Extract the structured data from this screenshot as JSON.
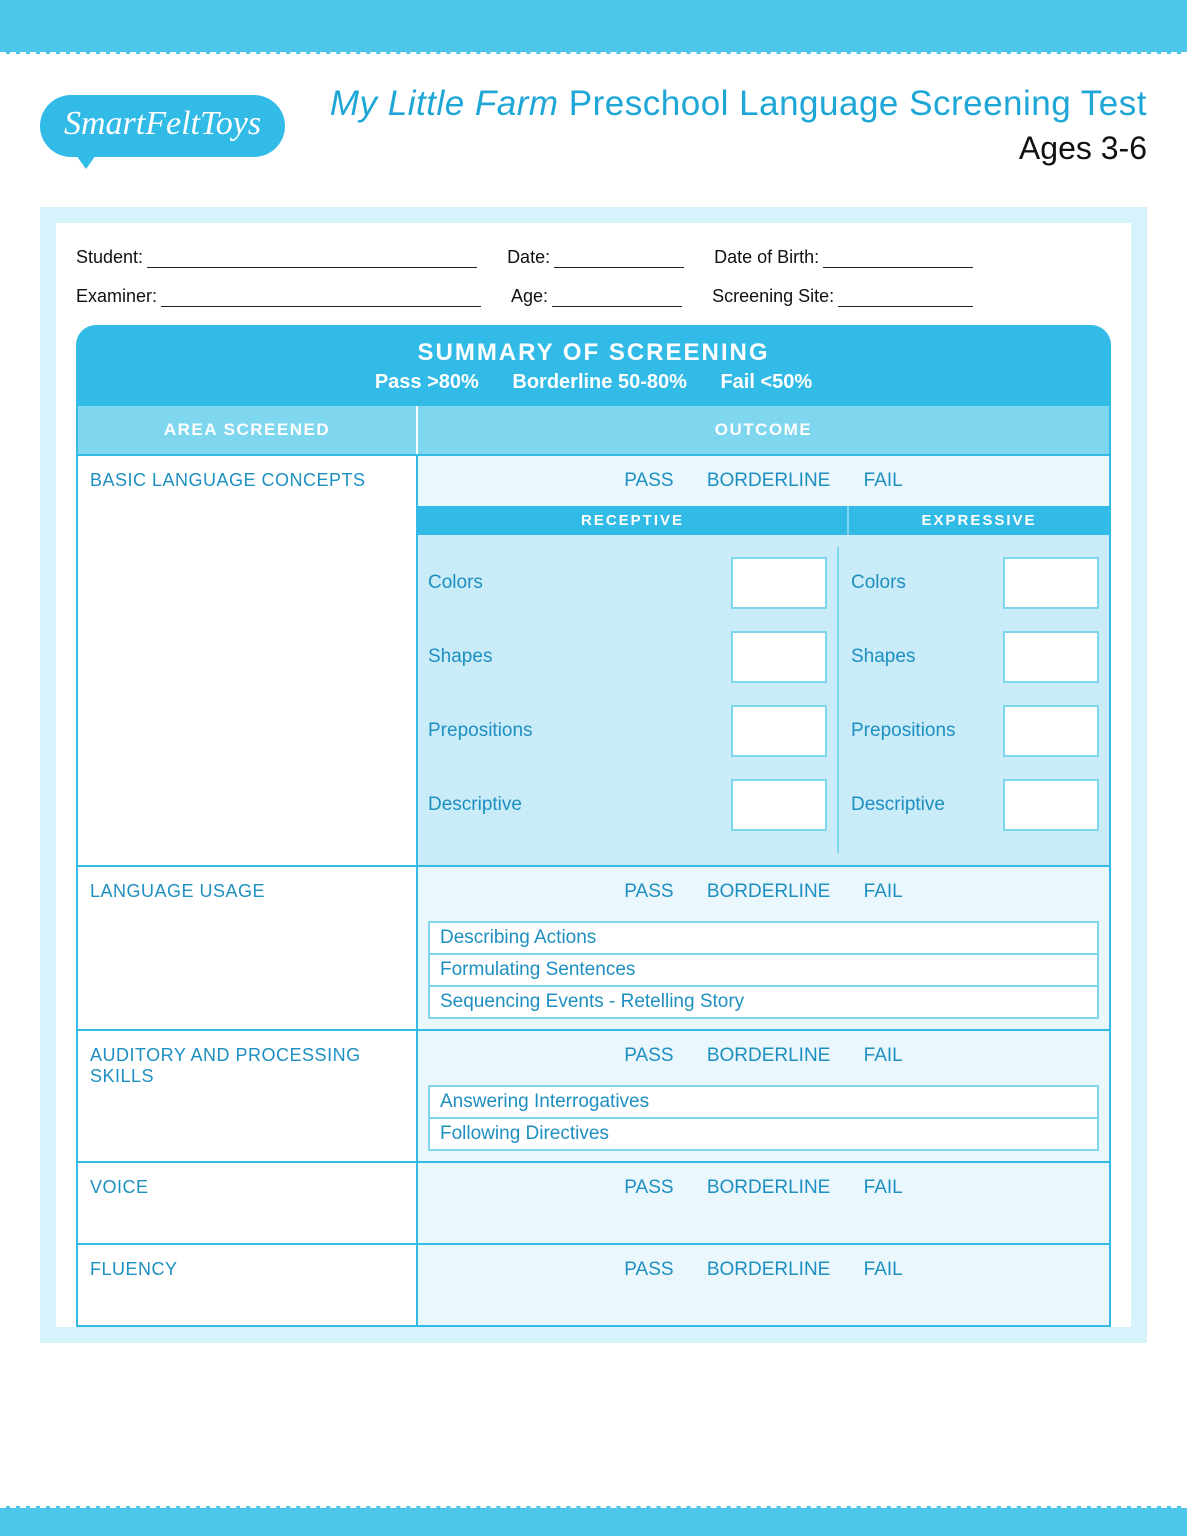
{
  "colors": {
    "brand": "#32bbe7",
    "brand_light": "#7fd7ef",
    "brand_pale": "#d6f2fb",
    "brand_text": "#1d8fc1",
    "panel_bg": "#eaf7fc",
    "grid_bg": "#c9ecf8"
  },
  "logo_text": "SmartFeltToys",
  "title_italic": "My Little Farm",
  "title_rest": " Preschool Language Screening Test",
  "ages": "Ages 3-6",
  "info": {
    "student": "Student:",
    "date": "Date:",
    "dob": "Date of Birth:",
    "examiner": "Examiner:",
    "age": "Age:",
    "site": "Screening Site:"
  },
  "summary": {
    "title": "SUMMARY OF SCREENING",
    "legend_pass": "Pass  >80%",
    "legend_borderline": "Borderline 50-80%",
    "legend_fail": "Fail  <50%"
  },
  "col_headers": {
    "area": "AREA SCREENED",
    "outcome": "OUTCOME"
  },
  "pbf": {
    "pass": "PASS",
    "borderline": "BORDERLINE",
    "fail": "FAIL"
  },
  "subheads": {
    "receptive": "RECEPTIVE",
    "expressive": "EXPRESSIVE"
  },
  "sections": {
    "basic": {
      "label": "BASIC LANGUAGE CONCEPTS",
      "receptive": [
        "Colors",
        "Shapes",
        "Prepositions",
        "Descriptive"
      ],
      "expressive": [
        "Colors",
        "Shapes",
        "Prepositions",
        "Descriptive"
      ]
    },
    "usage": {
      "label": "LANGUAGE USAGE",
      "items": [
        "Describing Actions",
        "Formulating Sentences",
        "Sequencing Events - Retelling Story"
      ]
    },
    "auditory": {
      "label": "AUDITORY AND PROCESSING SKILLS",
      "items": [
        "Answering Interrogatives",
        "Following Directives"
      ]
    },
    "voice": {
      "label": "VOICE"
    },
    "fluency": {
      "label": "FLUENCY"
    }
  }
}
